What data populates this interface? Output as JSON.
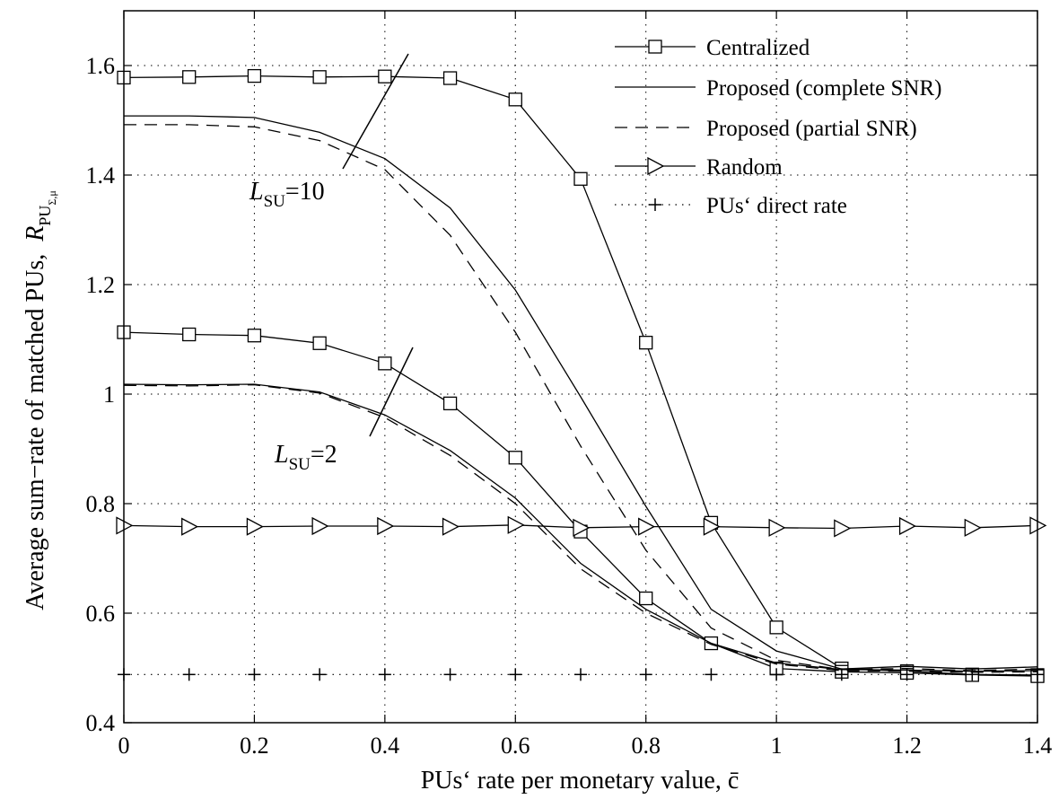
{
  "chart_data": {
    "type": "line",
    "xlabel": "PUs‘ rate per monetary value, c̄",
    "ylabel": "Average sum−rate of matched PUs,",
    "ylabel_symbol": "R",
    "ylabel_sub": "PU",
    "ylabel_subsub": "Σ,μ",
    "xlim": [
      0,
      1.4
    ],
    "ylim": [
      0.4,
      1.7
    ],
    "xticks": [
      0,
      0.2,
      0.4,
      0.6,
      0.8,
      1,
      1.2,
      1.4
    ],
    "yticks": [
      0.4,
      0.6,
      0.8,
      1,
      1.2,
      1.4,
      1.6
    ],
    "xtick_labels": [
      "0",
      "0.2",
      "0.4",
      "0.6",
      "0.8",
      "1",
      "1.2",
      "1.4"
    ],
    "ytick_labels": [
      "0.4",
      "0.6",
      "0.8",
      "1",
      "1.2",
      "1.4",
      "1.6"
    ],
    "grid": true,
    "legend_position": "top-right",
    "legend": [
      {
        "label": "Centralized",
        "style": "solid",
        "marker": "square"
      },
      {
        "label": "Proposed (complete SNR)",
        "style": "solid",
        "marker": "none"
      },
      {
        "label": "Proposed (partial SNR)",
        "style": "dashed",
        "marker": "none"
      },
      {
        "label": "Random",
        "style": "solid",
        "marker": "triangle-right"
      },
      {
        "label": "PUs‘ direct rate",
        "style": "dotted",
        "marker": "plus"
      }
    ],
    "annotations": [
      {
        "symbol": "L",
        "sub": "SU",
        "value": "=10"
      },
      {
        "symbol": "L",
        "sub": "SU",
        "value": "=2"
      }
    ],
    "series": [
      {
        "legend_ref": 0,
        "style": "solid",
        "marker": "square",
        "x": [
          0,
          0.1,
          0.2,
          0.3,
          0.4,
          0.5,
          0.6,
          0.7,
          0.8,
          0.9,
          1.0,
          1.1,
          1.2,
          1.3,
          1.4
        ],
        "y": [
          1.578,
          1.579,
          1.581,
          1.579,
          1.58,
          1.577,
          1.538,
          1.393,
          1.094,
          0.765,
          0.574,
          0.499,
          0.494,
          0.488,
          0.487
        ]
      },
      {
        "legend_ref": 0,
        "style": "solid",
        "marker": "square",
        "x": [
          0,
          0.1,
          0.2,
          0.3,
          0.4,
          0.5,
          0.6,
          0.7,
          0.8,
          0.9,
          1.0,
          1.1,
          1.2,
          1.3,
          1.4
        ],
        "y": [
          1.113,
          1.109,
          1.107,
          1.093,
          1.056,
          0.983,
          0.884,
          0.749,
          0.627,
          0.545,
          0.499,
          0.493,
          0.491,
          0.487,
          0.485
        ]
      },
      {
        "legend_ref": 1,
        "style": "solid",
        "marker": "none",
        "x": [
          0,
          0.1,
          0.2,
          0.3,
          0.4,
          0.5,
          0.6,
          0.7,
          0.8,
          0.9,
          1.0,
          1.1,
          1.2,
          1.3,
          1.4
        ],
        "y": [
          1.508,
          1.508,
          1.505,
          1.478,
          1.43,
          1.34,
          1.19,
          0.995,
          0.795,
          0.607,
          0.531,
          0.498,
          0.503,
          0.498,
          0.502
        ]
      },
      {
        "legend_ref": 2,
        "style": "dashed",
        "marker": "none",
        "x": [
          0,
          0.1,
          0.2,
          0.3,
          0.4,
          0.5,
          0.6,
          0.7,
          0.8,
          0.9,
          1.0,
          1.1,
          1.2,
          1.3,
          1.4
        ],
        "y": [
          1.492,
          1.492,
          1.488,
          1.463,
          1.41,
          1.29,
          1.113,
          0.905,
          0.715,
          0.573,
          0.514,
          0.497,
          0.499,
          0.495,
          0.498
        ]
      },
      {
        "legend_ref": 1,
        "style": "solid",
        "marker": "none",
        "x": [
          0,
          0.1,
          0.2,
          0.3,
          0.4,
          0.5,
          0.6,
          0.7,
          0.8,
          0.9,
          1.0,
          1.1,
          1.2,
          1.3,
          1.4
        ],
        "y": [
          1.018,
          1.017,
          1.018,
          1.004,
          0.962,
          0.897,
          0.81,
          0.691,
          0.607,
          0.545,
          0.509,
          0.497,
          0.496,
          0.494,
          0.495
        ]
      },
      {
        "legend_ref": 2,
        "style": "dashed",
        "marker": "none",
        "x": [
          0,
          0.1,
          0.2,
          0.3,
          0.4,
          0.5,
          0.6,
          0.7,
          0.8,
          0.9,
          1.0,
          1.1,
          1.2,
          1.3,
          1.4
        ],
        "y": [
          1.016,
          1.015,
          1.017,
          1.002,
          0.957,
          0.888,
          0.8,
          0.681,
          0.6,
          0.543,
          0.507,
          0.495,
          0.494,
          0.492,
          0.493
        ]
      },
      {
        "legend_ref": 3,
        "style": "solid",
        "marker": "triangle-right",
        "x": [
          0,
          0.1,
          0.2,
          0.3,
          0.4,
          0.5,
          0.6,
          0.7,
          0.8,
          0.9,
          1.0,
          1.1,
          1.2,
          1.3,
          1.4
        ],
        "y": [
          0.76,
          0.758,
          0.758,
          0.759,
          0.759,
          0.758,
          0.761,
          0.756,
          0.758,
          0.758,
          0.756,
          0.755,
          0.759,
          0.756,
          0.76
        ]
      },
      {
        "legend_ref": 4,
        "style": "dotted",
        "marker": "plus",
        "x": [
          0,
          0.1,
          0.2,
          0.3,
          0.4,
          0.5,
          0.6,
          0.7,
          0.8,
          0.9,
          1.0,
          1.1,
          1.2,
          1.3,
          1.4
        ],
        "y": [
          0.488,
          0.488,
          0.488,
          0.488,
          0.488,
          0.488,
          0.488,
          0.488,
          0.488,
          0.488,
          0.488,
          0.488,
          0.488,
          0.488,
          0.488
        ]
      }
    ]
  }
}
